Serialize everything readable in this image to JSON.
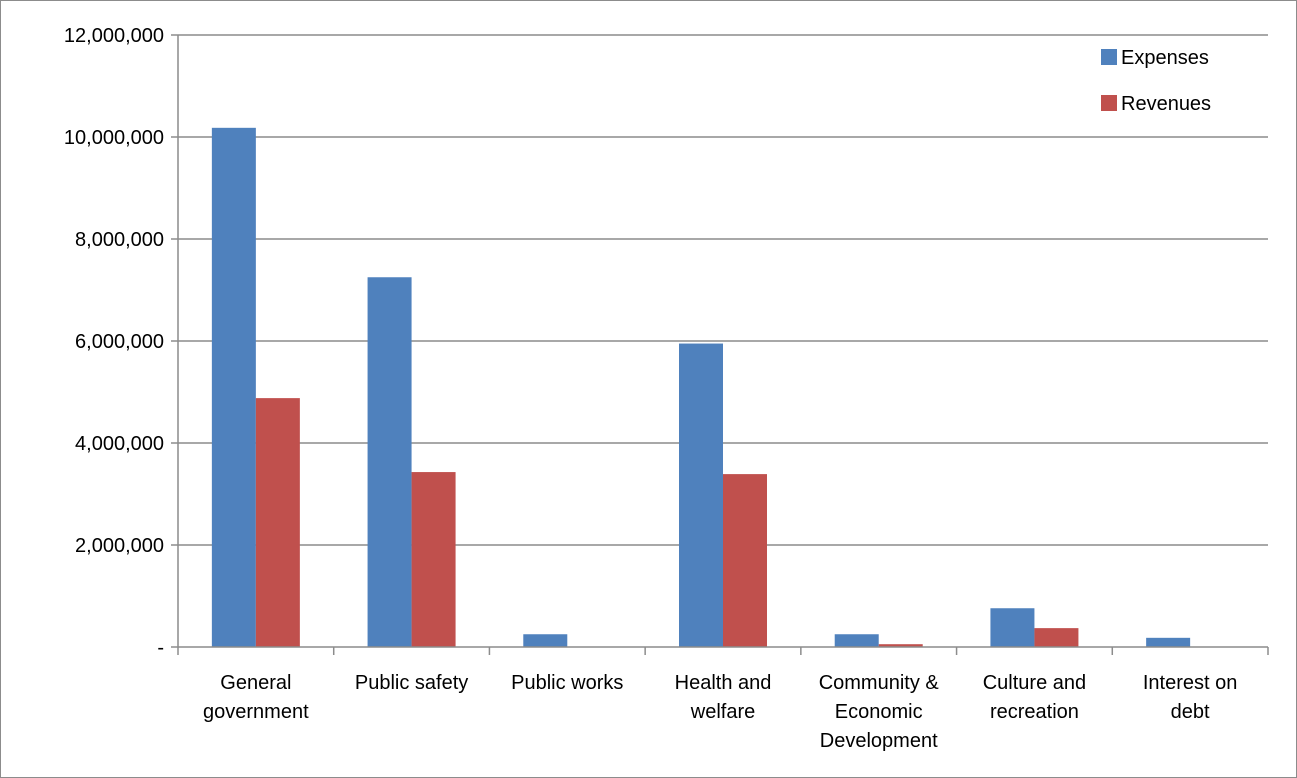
{
  "chart_data": {
    "type": "bar",
    "categories": [
      [
        "General",
        "government"
      ],
      [
        "Public safety"
      ],
      [
        "Public works"
      ],
      [
        "Health and",
        "welfare"
      ],
      [
        "Community &",
        "Economic",
        "Development"
      ],
      [
        "Culture and",
        "recreation"
      ],
      [
        "Interest on",
        "debt"
      ]
    ],
    "series": [
      {
        "name": "Expenses",
        "color": "#4f81bd",
        "values": [
          10180000,
          7250000,
          250000,
          5950000,
          250000,
          760000,
          180000
        ]
      },
      {
        "name": "Revenues",
        "color": "#c0504d",
        "values": [
          4880000,
          3430000,
          0,
          3390000,
          55000,
          370000,
          0
        ]
      }
    ],
    "ylim": [
      0,
      12000000
    ],
    "yticks": [
      0,
      2000000,
      4000000,
      6000000,
      8000000,
      10000000,
      12000000
    ],
    "ytick_labels": [
      "-",
      "2,000,000",
      "4,000,000",
      "6,000,000",
      "8,000,000",
      "10,000,000",
      "12,000,000"
    ],
    "grid": true,
    "legend_position": "top-right",
    "title": "",
    "xlabel": "",
    "ylabel": ""
  }
}
